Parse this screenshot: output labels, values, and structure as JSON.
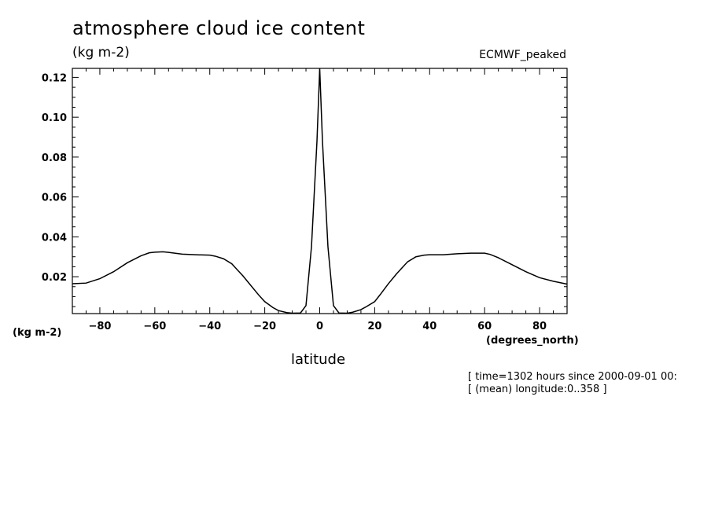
{
  "chart_data": {
    "type": "line",
    "title": "atmosphere cloud ice content",
    "units": "(kg m-2)",
    "dataset": "ECMWF_peaked",
    "xlabel": "latitude",
    "x_units": "(degrees_north)",
    "y_units": "(kg m-2)",
    "xlim": [
      -90,
      90
    ],
    "ylim": [
      0.0015,
      0.1245
    ],
    "xticks": [
      -80,
      -60,
      -40,
      -20,
      0,
      20,
      40,
      60,
      80
    ],
    "yticks": [
      0.02,
      0.04,
      0.06,
      0.08,
      0.1,
      0.12
    ],
    "ytick_labels": [
      "0.02",
      "0.04",
      "0.06",
      "0.08",
      "0.10",
      "0.12"
    ],
    "grid": false,
    "series": [
      {
        "x": [
          -90,
          -85,
          -80,
          -75,
          -70,
          -65,
          -62,
          -60,
          -57,
          -55,
          -50,
          -45,
          -40,
          -38,
          -35,
          -32,
          -30,
          -28,
          -25,
          -22,
          -20,
          -17,
          -15,
          -12,
          -10,
          -7,
          -5,
          -3,
          -1,
          0,
          1,
          3,
          5,
          7,
          10,
          12,
          15,
          17,
          20,
          22,
          25,
          28,
          30,
          32,
          35,
          38,
          40,
          42,
          45,
          50,
          55,
          60,
          62,
          65,
          70,
          75,
          80,
          85,
          90
        ],
        "y": [
          0.0165,
          0.0168,
          0.019,
          0.0225,
          0.027,
          0.0305,
          0.032,
          0.0323,
          0.0325,
          0.0322,
          0.0313,
          0.031,
          0.0308,
          0.0303,
          0.029,
          0.0265,
          0.0235,
          0.0205,
          0.0155,
          0.0105,
          0.0075,
          0.0045,
          0.003,
          0.002,
          0.0017,
          0.0018,
          0.0055,
          0.035,
          0.088,
          0.1245,
          0.088,
          0.035,
          0.0055,
          0.0018,
          0.0017,
          0.0022,
          0.0035,
          0.005,
          0.0075,
          0.011,
          0.0165,
          0.0215,
          0.0245,
          0.0275,
          0.03,
          0.0308,
          0.031,
          0.031,
          0.031,
          0.0315,
          0.0318,
          0.0318,
          0.0312,
          0.0295,
          0.026,
          0.0225,
          0.0195,
          0.0177,
          0.0163
        ]
      }
    ]
  },
  "annotations": {
    "time": "[ time=1302 hours since 2000-09-01 00:",
    "longitude": "[ (mean) longitude:0..358 ]"
  }
}
